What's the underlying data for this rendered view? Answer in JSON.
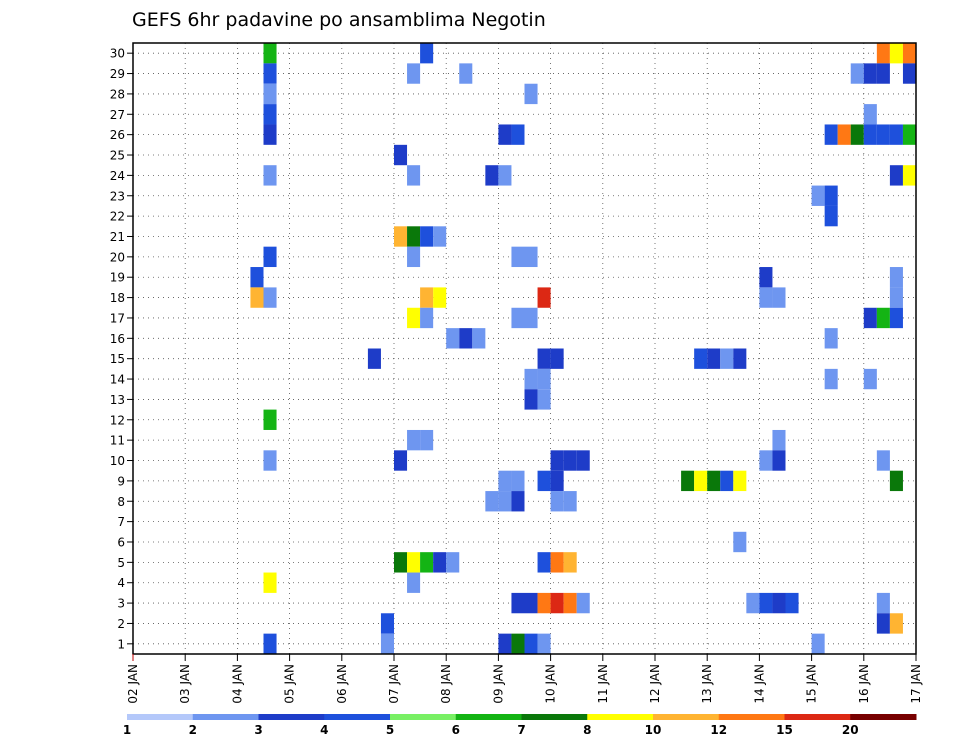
{
  "chart_data": {
    "type": "heatmap",
    "title": "GEFS 6hr padavine po ansamblima Negotin",
    "xlabel": "",
    "ylabel": "",
    "x_ticks": [
      "02 JAN",
      "03 JAN",
      "04 JAN",
      "05 JAN",
      "06 JAN",
      "07 JAN",
      "08 JAN",
      "09 JAN",
      "10 JAN",
      "11 JAN",
      "12 JAN",
      "13 JAN",
      "14 JAN",
      "15 JAN",
      "16 JAN",
      "17 JAN"
    ],
    "y_ticks": [
      "1",
      "2",
      "3",
      "4",
      "5",
      "6",
      "7",
      "8",
      "9",
      "10",
      "11",
      "12",
      "13",
      "14",
      "15",
      "16",
      "17",
      "18",
      "19",
      "20",
      "21",
      "22",
      "23",
      "24",
      "25",
      "26",
      "27",
      "28",
      "29",
      "30"
    ],
    "xlim_steps": [
      0,
      60
    ],
    "ylim": [
      0.5,
      30.5
    ],
    "step_hours": 6,
    "grid": true,
    "colorbar": {
      "placement": "bottom",
      "labels": [
        "1",
        "2",
        "3",
        "4",
        "5",
        "6",
        "7",
        "8",
        "10",
        "12",
        "15",
        "20"
      ],
      "colors": [
        "#b4c8fa",
        "#6e96f0",
        "#1e3cc8",
        "#1e50dc",
        "#78f064",
        "#14b414",
        "#0a780a",
        "#ffff00",
        "#ffb432",
        "#ff7814",
        "#dc2814",
        "#780000"
      ]
    },
    "cells": [
      [
        10.5,
        30,
        5
      ],
      [
        22.5,
        30,
        3
      ],
      [
        57.5,
        30,
        9
      ],
      [
        58.5,
        30,
        7
      ],
      [
        59.5,
        30,
        9
      ],
      [
        10.5,
        29,
        3
      ],
      [
        21.5,
        29,
        1
      ],
      [
        25.5,
        29,
        1
      ],
      [
        55.5,
        29,
        1
      ],
      [
        56.5,
        29,
        2
      ],
      [
        57.5,
        29,
        2
      ],
      [
        59.5,
        29,
        2
      ],
      [
        10.5,
        28,
        1
      ],
      [
        30.5,
        28,
        1
      ],
      [
        10.5,
        27,
        3
      ],
      [
        56.5,
        27,
        1
      ],
      [
        10.5,
        26,
        2
      ],
      [
        28.5,
        26,
        2
      ],
      [
        29.5,
        26,
        3
      ],
      [
        53.5,
        26,
        3
      ],
      [
        54.5,
        26,
        9
      ],
      [
        55.5,
        26,
        6
      ],
      [
        56.5,
        26,
        3
      ],
      [
        57.5,
        26,
        3
      ],
      [
        58.5,
        26,
        3
      ],
      [
        59.5,
        26,
        5
      ],
      [
        20.5,
        25,
        2
      ],
      [
        10.5,
        24,
        1
      ],
      [
        21.5,
        24,
        1
      ],
      [
        27.5,
        24,
        2
      ],
      [
        28.5,
        24,
        1
      ],
      [
        58.5,
        24,
        2
      ],
      [
        59.5,
        24,
        7
      ],
      [
        60.5,
        24,
        11
      ],
      [
        52.5,
        23,
        1
      ],
      [
        53.5,
        23,
        3
      ],
      [
        53.5,
        22,
        3
      ],
      [
        20.5,
        21,
        8
      ],
      [
        21.5,
        21,
        6
      ],
      [
        22.5,
        21,
        3
      ],
      [
        23.5,
        21,
        1
      ],
      [
        10.5,
        20,
        3
      ],
      [
        21.5,
        20,
        1
      ],
      [
        29.5,
        20,
        1
      ],
      [
        30.5,
        20,
        1
      ],
      [
        9.5,
        19,
        3
      ],
      [
        48.5,
        19,
        2
      ],
      [
        58.5,
        19,
        1
      ],
      [
        9.5,
        18,
        8
      ],
      [
        10.5,
        18,
        1
      ],
      [
        22.5,
        18,
        8
      ],
      [
        23.5,
        18,
        7
      ],
      [
        31.5,
        18,
        10
      ],
      [
        48.5,
        18,
        1
      ],
      [
        49.5,
        18,
        1
      ],
      [
        58.5,
        18,
        1
      ],
      [
        21.5,
        17,
        7
      ],
      [
        22.5,
        17,
        1
      ],
      [
        29.5,
        17,
        1
      ],
      [
        30.5,
        17,
        1
      ],
      [
        56.5,
        17,
        2
      ],
      [
        57.5,
        17,
        5
      ],
      [
        58.5,
        17,
        3
      ],
      [
        24.5,
        16,
        1
      ],
      [
        25.5,
        16,
        2
      ],
      [
        26.5,
        16,
        1
      ],
      [
        53.5,
        16,
        1
      ],
      [
        60.5,
        16,
        11
      ],
      [
        18.5,
        15,
        2
      ],
      [
        31.5,
        15,
        2
      ],
      [
        32.5,
        15,
        2
      ],
      [
        43.5,
        15,
        3
      ],
      [
        44.5,
        15,
        2
      ],
      [
        45.5,
        15,
        1
      ],
      [
        46.5,
        15,
        2
      ],
      [
        30.5,
        14,
        1
      ],
      [
        31.5,
        14,
        1
      ],
      [
        53.5,
        14,
        1
      ],
      [
        56.5,
        14,
        1
      ],
      [
        30.5,
        13,
        2
      ],
      [
        31.5,
        13,
        1
      ],
      [
        10.5,
        12,
        5
      ],
      [
        21.5,
        11,
        1
      ],
      [
        22.5,
        11,
        1
      ],
      [
        49.5,
        11,
        1
      ],
      [
        10.5,
        10,
        1
      ],
      [
        20.5,
        10,
        2
      ],
      [
        32.5,
        10,
        2
      ],
      [
        33.5,
        10,
        2
      ],
      [
        34.5,
        10,
        2
      ],
      [
        48.5,
        10,
        1
      ],
      [
        49.5,
        10,
        2
      ],
      [
        57.5,
        10,
        1
      ],
      [
        28.5,
        9,
        1
      ],
      [
        29.5,
        9,
        1
      ],
      [
        31.5,
        9,
        3
      ],
      [
        32.5,
        9,
        2
      ],
      [
        42.5,
        9,
        6
      ],
      [
        43.5,
        9,
        7
      ],
      [
        44.5,
        9,
        6
      ],
      [
        45.5,
        9,
        3
      ],
      [
        46.5,
        9,
        7
      ],
      [
        58.5,
        9,
        6
      ],
      [
        27.5,
        8,
        1
      ],
      [
        28.5,
        8,
        1
      ],
      [
        29.5,
        8,
        2
      ],
      [
        32.5,
        8,
        1
      ],
      [
        33.5,
        8,
        1
      ],
      [
        46.5,
        6,
        1
      ],
      [
        20.5,
        5,
        6
      ],
      [
        21.5,
        5,
        7
      ],
      [
        22.5,
        5,
        5
      ],
      [
        23.5,
        5,
        2
      ],
      [
        24.5,
        5,
        1
      ],
      [
        31.5,
        5,
        3
      ],
      [
        32.5,
        5,
        9
      ],
      [
        33.5,
        5,
        8
      ],
      [
        10.5,
        4,
        7
      ],
      [
        21.5,
        4,
        1
      ],
      [
        29.5,
        3,
        2
      ],
      [
        30.5,
        3,
        2
      ],
      [
        31.5,
        3,
        9
      ],
      [
        32.5,
        3,
        10
      ],
      [
        33.5,
        3,
        9
      ],
      [
        34.5,
        3,
        1
      ],
      [
        47.5,
        3,
        1
      ],
      [
        48.5,
        3,
        3
      ],
      [
        49.5,
        3,
        2
      ],
      [
        50.5,
        3,
        3
      ],
      [
        57.5,
        3,
        1
      ],
      [
        19.5,
        2,
        3
      ],
      [
        57.5,
        2,
        2
      ],
      [
        58.5,
        2,
        8
      ],
      [
        10.5,
        1,
        3
      ],
      [
        19.5,
        1,
        1
      ],
      [
        28.5,
        1,
        2
      ],
      [
        29.5,
        1,
        6
      ],
      [
        30.5,
        1,
        3
      ],
      [
        31.5,
        1,
        1
      ],
      [
        52.5,
        1,
        1
      ]
    ]
  }
}
